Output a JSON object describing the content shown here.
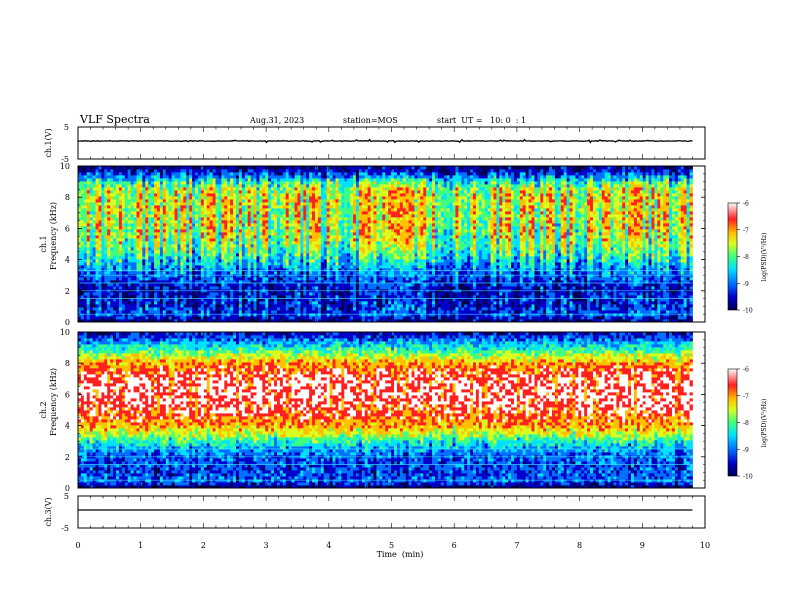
{
  "header": {
    "title": "VLF Spectra",
    "date": "Aug.31, 2023",
    "station": "station=MOS",
    "start": "start  UT =   10: 0  : 1"
  },
  "colors": {
    "spectrum": [
      "#000050",
      "#0000c8",
      "#0070ff",
      "#00e0ff",
      "#40ff80",
      "#d8ff20",
      "#ffc000",
      "#ff2020",
      "#ffffff"
    ],
    "trace": "#000000",
    "axis": "#000000"
  },
  "chart_data": [
    {
      "type": "line",
      "name": "ch1-waveform",
      "ylabel": "ch.1(V)",
      "yticks": [
        5,
        -5
      ],
      "ylim": [
        -5,
        5
      ],
      "xlim": [
        0,
        10
      ],
      "trace_level": 0
    },
    {
      "type": "heatmap",
      "name": "ch1-spectrogram",
      "ylabel": "ch.1\nFrequency (kHz)",
      "yticks": [
        0,
        2,
        4,
        6,
        8,
        10
      ],
      "ylim": [
        0,
        10
      ],
      "xlim": [
        0,
        9.8
      ],
      "colorbar": {
        "label": "log(PSD)(V²/Hz)",
        "ticks": [
          -6,
          -7,
          -8,
          -9,
          -10
        ],
        "range": [
          -10,
          -6
        ]
      },
      "profile": {
        "freq_khz": [
          0,
          0.5,
          1,
          1.5,
          2,
          2.5,
          3,
          3.5,
          4,
          4.5,
          5,
          5.5,
          6,
          6.5,
          7,
          7.5,
          8,
          8.5,
          9,
          9.5,
          10
        ],
        "log_psd_burst": [
          -9.6,
          -8.8,
          -9.0,
          -9.0,
          -9.1,
          -9.0,
          -8.7,
          -8.4,
          -8.0,
          -7.6,
          -7.3,
          -7.1,
          -7.0,
          -7.0,
          -7.0,
          -7.0,
          -7.0,
          -7.1,
          -7.8,
          -8.8,
          -9.6
        ],
        "log_psd_quiet": [
          -9.8,
          -9.3,
          -9.6,
          -9.7,
          -9.7,
          -9.5,
          -9.3,
          -9.2,
          -9.0,
          -8.8,
          -8.6,
          -8.5,
          -8.4,
          -8.3,
          -8.3,
          -8.2,
          -8.2,
          -8.3,
          -8.8,
          -9.4,
          -9.9
        ]
      },
      "line_features_khz": [
        0.5,
        1.5,
        2.0,
        2.5,
        3.0,
        3.3
      ]
    },
    {
      "type": "heatmap",
      "name": "ch2-spectrogram",
      "ylabel": "ch.2\nFrequency (kHz)",
      "yticks": [
        0,
        2,
        4,
        6,
        8,
        10
      ],
      "ylim": [
        0,
        10
      ],
      "xlim": [
        0,
        9.8
      ],
      "colorbar": {
        "label": "log(PSD)(V²/Hz)",
        "ticks": [
          -6,
          -7,
          -8,
          -9,
          -10
        ],
        "range": [
          -10,
          -6
        ]
      },
      "profile": {
        "freq_khz": [
          0,
          0.5,
          1,
          1.5,
          2,
          2.5,
          3,
          3.5,
          4,
          4.5,
          5,
          5.5,
          6,
          6.5,
          7,
          7.5,
          8,
          8.5,
          9,
          9.5,
          10
        ],
        "log_psd_burst": [
          -9.7,
          -8.8,
          -9.0,
          -9.0,
          -8.9,
          -8.6,
          -8.1,
          -7.4,
          -7.0,
          -6.7,
          -6.5,
          -6.4,
          -6.3,
          -6.3,
          -6.4,
          -6.6,
          -6.9,
          -7.5,
          -8.2,
          -8.8,
          -9.4
        ],
        "log_psd_quiet": [
          -9.8,
          -9.2,
          -9.4,
          -9.4,
          -9.3,
          -9.0,
          -8.6,
          -8.0,
          -7.4,
          -7.0,
          -6.9,
          -6.8,
          -6.8,
          -6.8,
          -6.9,
          -7.0,
          -7.3,
          -7.9,
          -8.5,
          -9.0,
          -9.6
        ]
      },
      "line_features_khz": [
        0.5,
        1.5,
        2.0,
        2.5
      ]
    },
    {
      "type": "line",
      "name": "ch3-waveform",
      "ylabel": "ch.3(V)",
      "yticks": [
        5,
        -5
      ],
      "ylim": [
        -5,
        5
      ],
      "xlim": [
        0,
        10
      ],
      "trace_level": 0
    }
  ],
  "xaxis": {
    "label": "Time  (min)",
    "ticks": [
      0,
      1,
      2,
      3,
      4,
      5,
      6,
      7,
      8,
      9,
      10
    ],
    "range": [
      0,
      10
    ]
  }
}
